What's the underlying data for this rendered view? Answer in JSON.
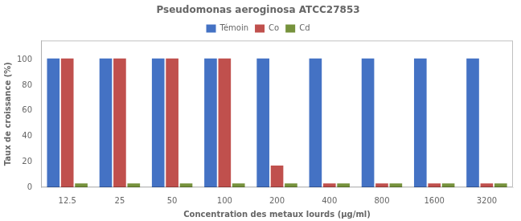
{
  "chart_data": {
    "type": "bar",
    "title": "Pseudomonas aeroginosa ATCC27853",
    "xlabel": "Concentration des metaux lourds (µg/ml)",
    "ylabel": "Taux de croissance (%)",
    "categories": [
      "12.5",
      "25",
      "50",
      "100",
      "200",
      "400",
      "800",
      "1600",
      "3200"
    ],
    "series": [
      {
        "name": "Témoin",
        "color": "#4472C4",
        "values": [
          101,
          101,
          101,
          101,
          101,
          101,
          101,
          101,
          101
        ]
      },
      {
        "name": "Co",
        "color": "#C0504D",
        "values": [
          101,
          101,
          101,
          101,
          17,
          3,
          3,
          3,
          3
        ]
      },
      {
        "name": "Cd",
        "color": "#76923C",
        "values": [
          3,
          3,
          3,
          3,
          3,
          3,
          3,
          3,
          3
        ]
      }
    ],
    "ylim": [
      0,
      115
    ],
    "yticks": [
      0,
      20,
      40,
      60,
      80,
      100
    ],
    "grid": false,
    "legend": "top"
  }
}
